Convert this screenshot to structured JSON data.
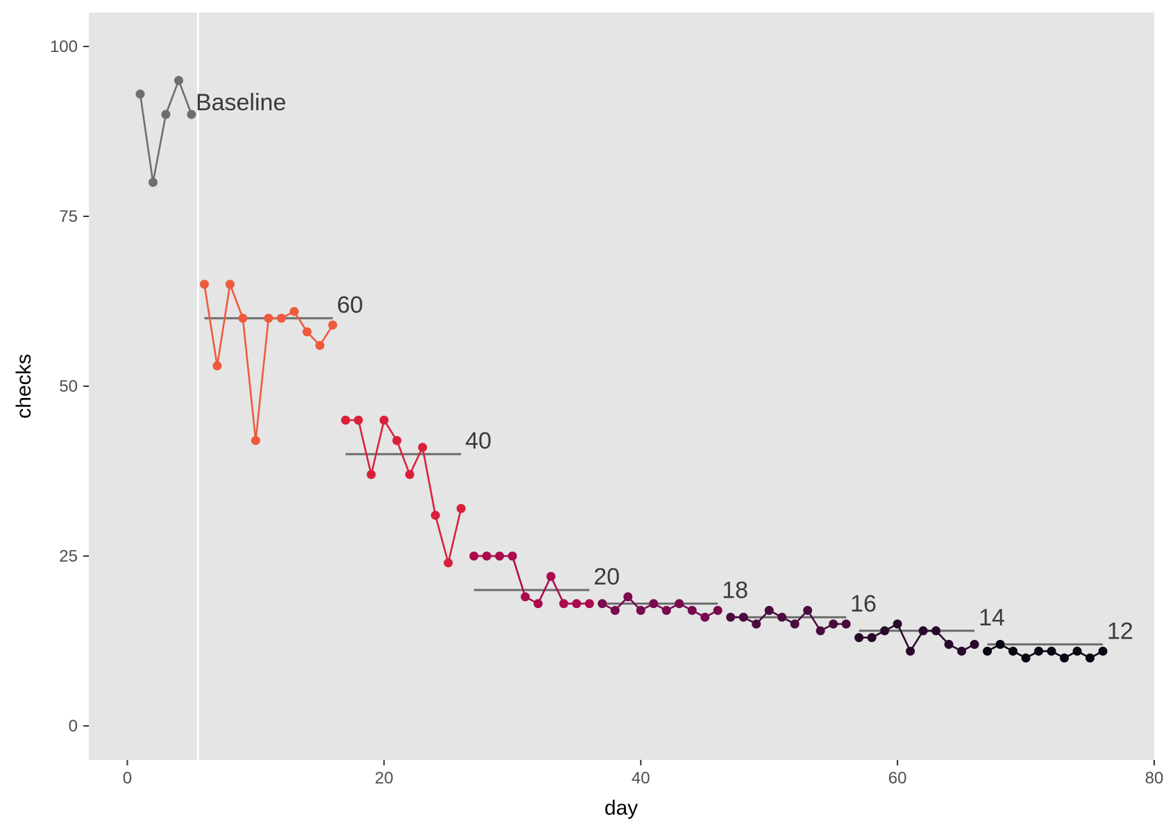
{
  "chart_data": {
    "type": "line",
    "title": "",
    "xlabel": "day",
    "ylabel": "checks",
    "xlim": [
      -3,
      80
    ],
    "ylim": [
      -5,
      105
    ],
    "xticks": [
      0,
      20,
      40,
      60,
      80
    ],
    "yticks": [
      0,
      25,
      50,
      75,
      100
    ],
    "grid": false,
    "legend": "none",
    "background": "#e5e5e5",
    "divider_day": 5.5,
    "target_line_color": "#6b6b6b",
    "series": [
      {
        "label": "Baseline",
        "target": null,
        "color": "#6e6e6e",
        "x": [
          1,
          2,
          3,
          4,
          5
        ],
        "y": [
          93,
          80,
          90,
          95,
          90
        ]
      },
      {
        "label": "60",
        "target": 60,
        "color": "#ef5a3c",
        "x": [
          6,
          7,
          8,
          9,
          10,
          11,
          12,
          13,
          14,
          15,
          16
        ],
        "y": [
          65,
          53,
          65,
          60,
          42,
          60,
          60,
          61,
          58,
          56,
          59
        ]
      },
      {
        "label": "40",
        "target": 40,
        "color": "#d9203a",
        "x": [
          17,
          18,
          19,
          20,
          21,
          22,
          23,
          24,
          25,
          26
        ],
        "y": [
          45,
          45,
          37,
          45,
          42,
          37,
          41,
          31,
          24,
          32
        ]
      },
      {
        "label": "20",
        "target": 20,
        "color": "#ab0b4c",
        "x": [
          27,
          28,
          29,
          30,
          31,
          32,
          33,
          34,
          35,
          36
        ],
        "y": [
          25,
          25,
          25,
          25,
          19,
          18,
          22,
          18,
          18,
          18
        ]
      },
      {
        "label": "18",
        "target": 18,
        "color": "#780a4e",
        "x": [
          37,
          38,
          39,
          40,
          41,
          42,
          43,
          44,
          45,
          46
        ],
        "y": [
          18,
          17,
          19,
          17,
          18,
          17,
          18,
          17,
          16,
          17
        ]
      },
      {
        "label": "16",
        "target": 16,
        "color": "#4a0c3f",
        "x": [
          47,
          48,
          49,
          50,
          51,
          52,
          53,
          54,
          55,
          56
        ],
        "y": [
          16,
          16,
          15,
          17,
          16,
          15,
          17,
          14,
          15,
          15
        ]
      },
      {
        "label": "14",
        "target": 14,
        "color": "#270a2a",
        "x": [
          57,
          58,
          59,
          60,
          61,
          62,
          63,
          64,
          65,
          66
        ],
        "y": [
          13,
          13,
          14,
          15,
          11,
          14,
          14,
          12,
          11,
          12
        ]
      },
      {
        "label": "12",
        "target": 12,
        "color": "#0a0512",
        "x": [
          67,
          68,
          69,
          70,
          71,
          72,
          73,
          74,
          75,
          76
        ],
        "y": [
          11,
          12,
          11,
          10,
          11,
          11,
          10,
          11,
          10,
          11
        ]
      }
    ]
  }
}
